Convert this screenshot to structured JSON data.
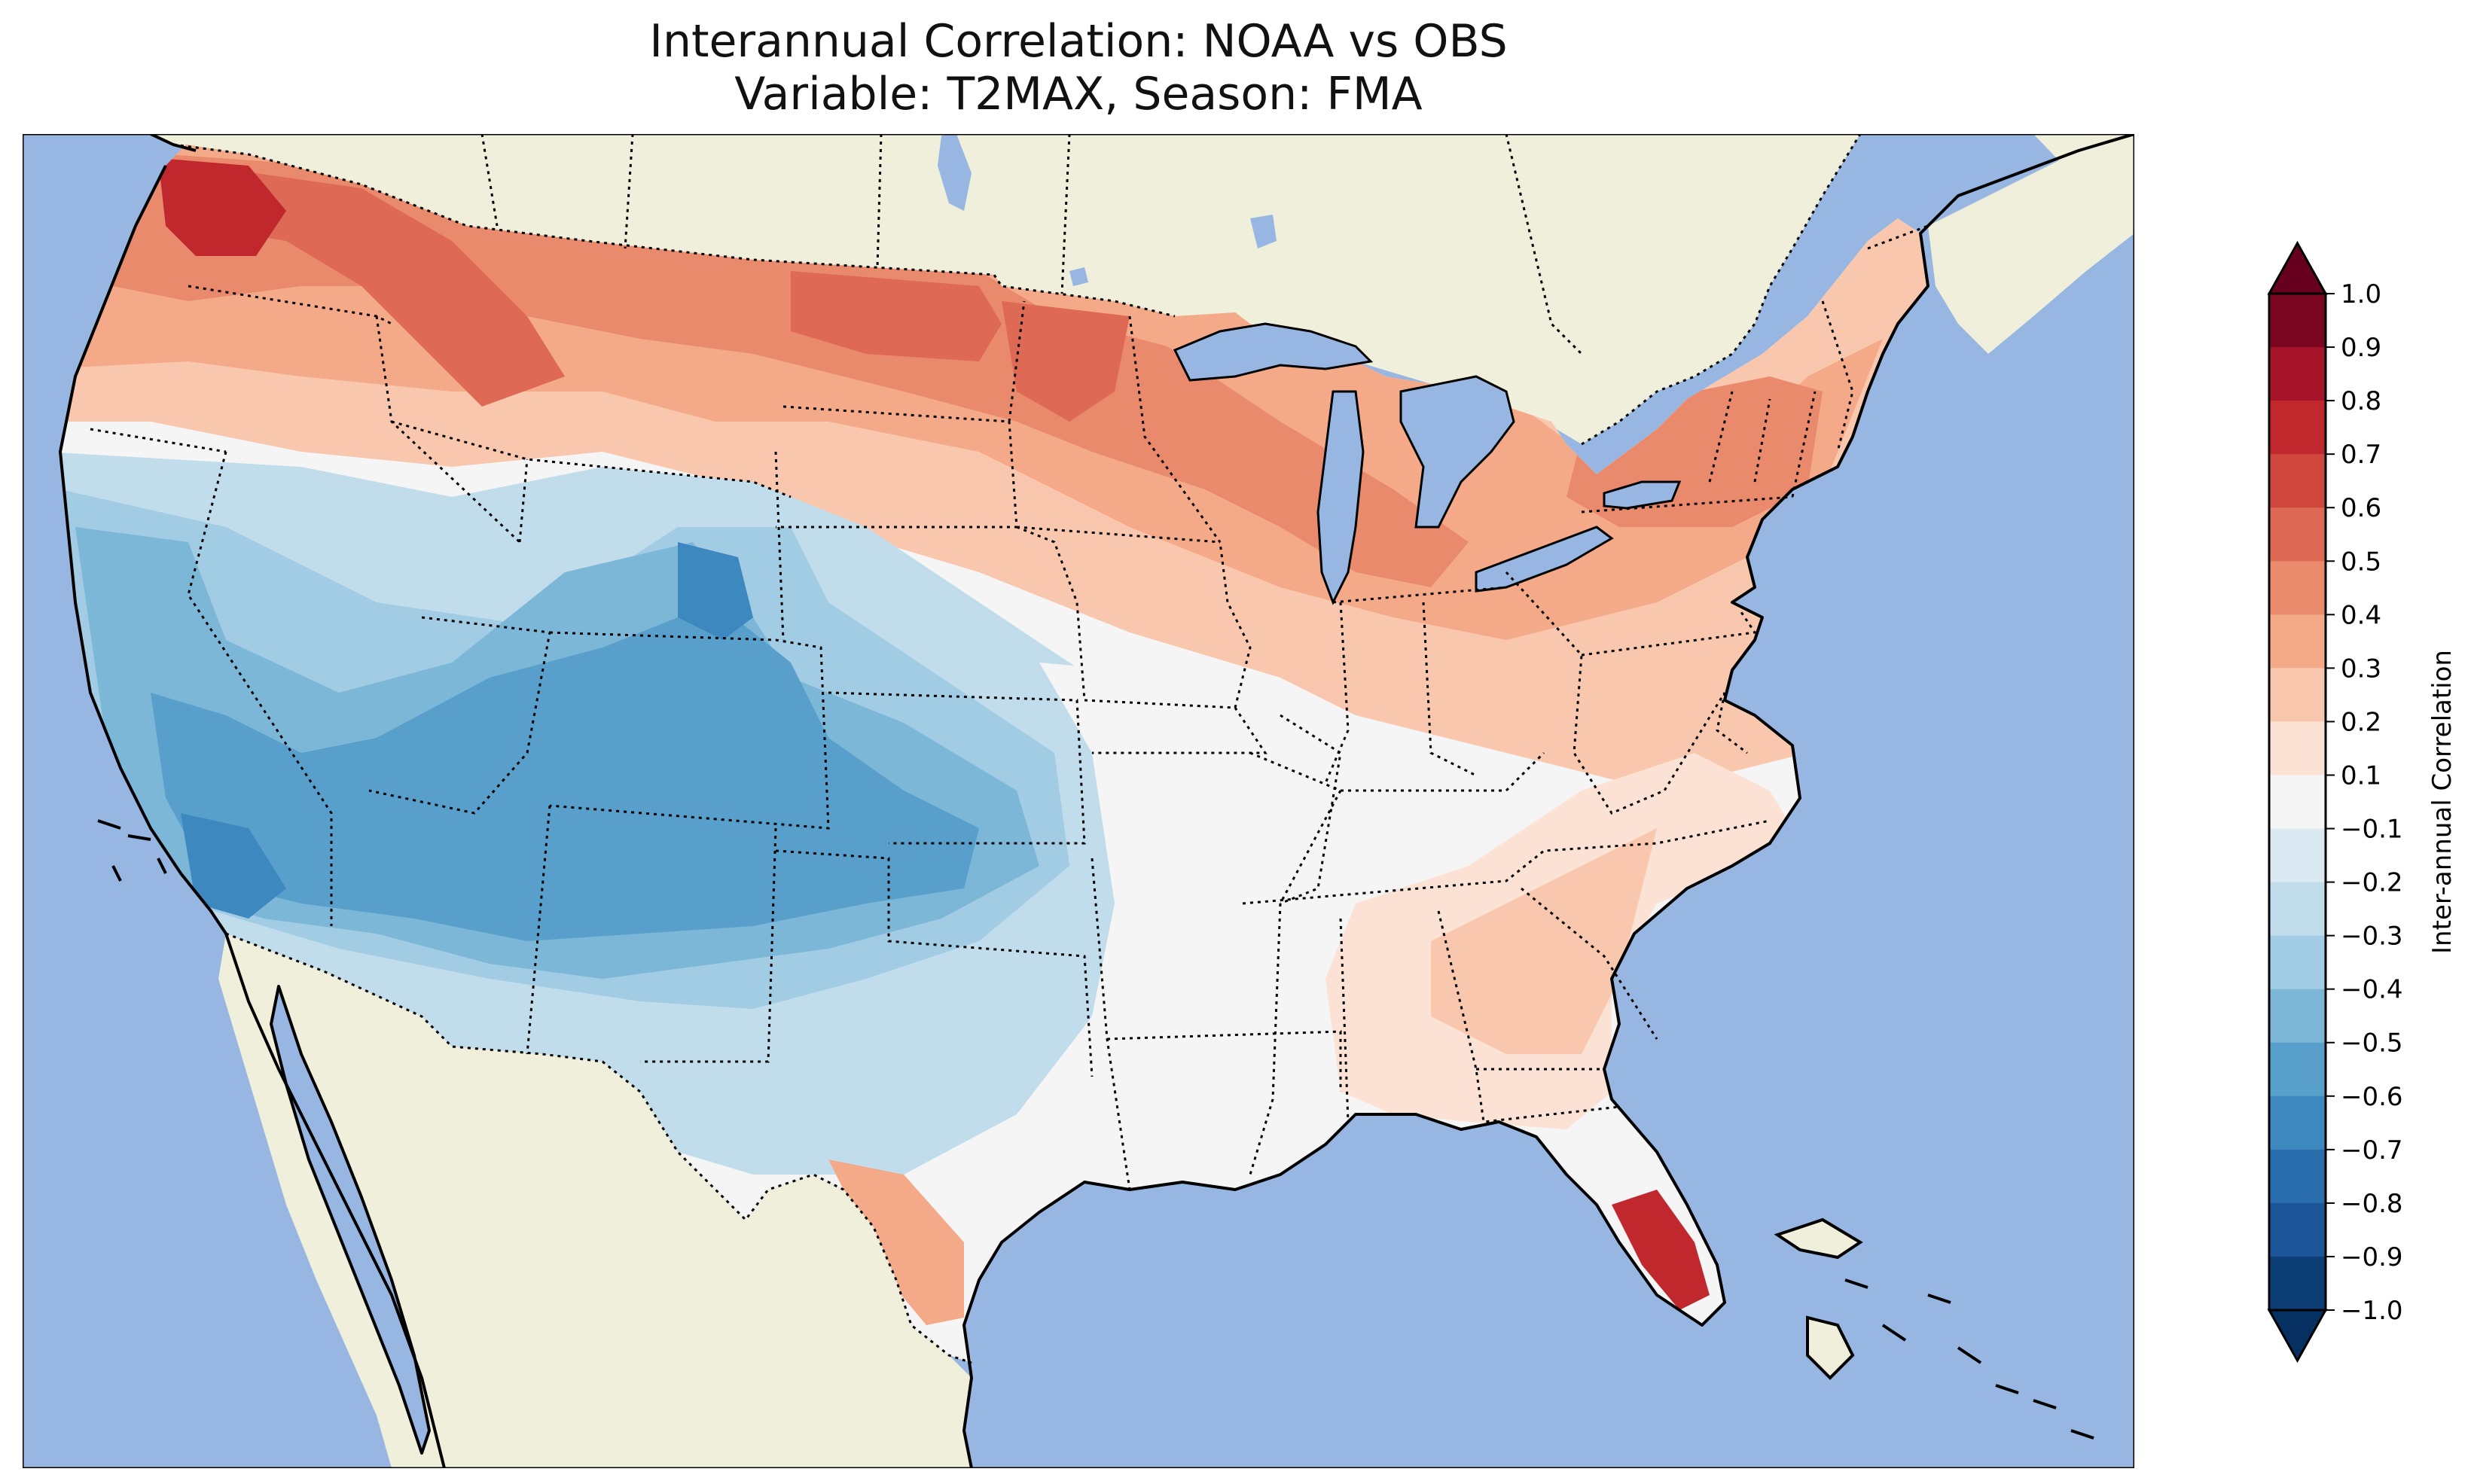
{
  "title": {
    "line1": "Interannual Correlation: NOAA vs OBS",
    "line2": "Variable: T2MAX, Season: FMA"
  },
  "colors": {
    "ocean": "#97b6e1",
    "land": "#efefdb",
    "coast": "#000000",
    "border": "#000000"
  },
  "colorbar": {
    "label": "Inter-annual Correlation",
    "ticks": [
      "1.0",
      "0.9",
      "0.8",
      "0.7",
      "0.6",
      "0.5",
      "0.4",
      "0.3",
      "0.2",
      "0.1",
      "−0.1",
      "−0.2",
      "−0.3",
      "−0.4",
      "−0.5",
      "−0.6",
      "−0.7",
      "−0.8",
      "−0.9",
      "−1.0"
    ],
    "colors": [
      "#7a0622",
      "#a51429",
      "#c0282e",
      "#d0473e",
      "#de6a55",
      "#ea8a6d",
      "#f4a989",
      "#f9c7ad",
      "#fbe2d4",
      "#f5f5f5",
      "#dbe9f2",
      "#c1ddec",
      "#a2cce3",
      "#7db7d8",
      "#58a0cb",
      "#3d88bf",
      "#2b6ead",
      "#1c5598",
      "#0d3d75"
    ],
    "extend_top": "#67001f",
    "extend_bottom": "#053061"
  },
  "chart_data": {
    "type": "heatmap",
    "title": "Interannual Correlation: NOAA vs OBS\nVariable: T2MAX, Season: FMA",
    "variable": "T2MAX",
    "season": "FMA",
    "colorbar_label": "Inter-annual Correlation",
    "range": [
      -1.0,
      1.0
    ],
    "levels": [
      -1.0,
      -0.9,
      -0.8,
      -0.7,
      -0.6,
      -0.5,
      -0.4,
      -0.3,
      -0.2,
      -0.1,
      0.1,
      0.2,
      0.3,
      0.4,
      0.5,
      0.6,
      0.7,
      0.8,
      0.9,
      1.0
    ]
  }
}
